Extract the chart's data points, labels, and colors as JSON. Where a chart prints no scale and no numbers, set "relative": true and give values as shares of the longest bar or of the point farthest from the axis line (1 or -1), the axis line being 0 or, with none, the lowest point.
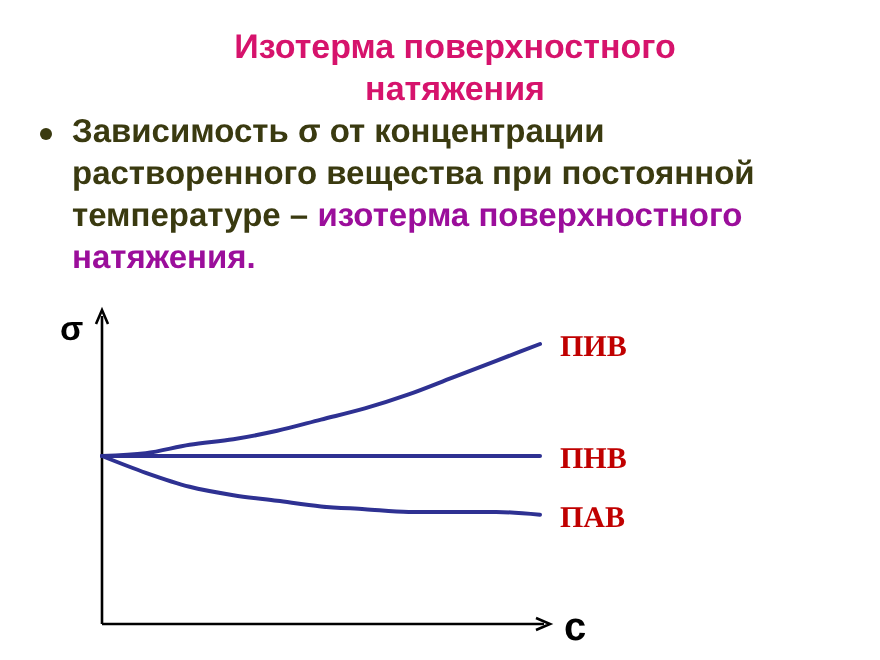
{
  "chart_data": {
    "type": "line",
    "relative": true,
    "title": "Изотерма поверхностного натяжения",
    "subtitle": "Зависимость σ от концентрации растворенного вещества при постоянной температуре –",
    "annotations": [
      "изотерма поверхностного натяжения."
    ],
    "xlabel": "c",
    "ylabel": "σ",
    "categories": [
      null,
      null,
      null,
      null,
      null,
      null,
      null,
      null,
      null,
      null,
      null
    ],
    "series": [
      {
        "name": "ПИВ",
        "color": "#2e3192",
        "values": [
          0.6,
          0.61,
          0.64,
          0.66,
          0.69,
          0.73,
          0.77,
          0.82,
          0.88,
          0.94,
          1
        ]
      },
      {
        "name": "ПНВ",
        "color": "#2e3192",
        "values": [
          0.6,
          0.6,
          0.6,
          0.6,
          0.6,
          0.6,
          0.6,
          0.6,
          0.6,
          0.6,
          0.6
        ]
      },
      {
        "name": "ПАВ",
        "color": "#2e3192",
        "values": [
          0.6,
          0.54,
          0.49,
          0.46,
          0.44,
          0.42,
          0.41,
          0.4,
          0.4,
          0.4,
          0.39
        ]
      }
    ]
  }
}
